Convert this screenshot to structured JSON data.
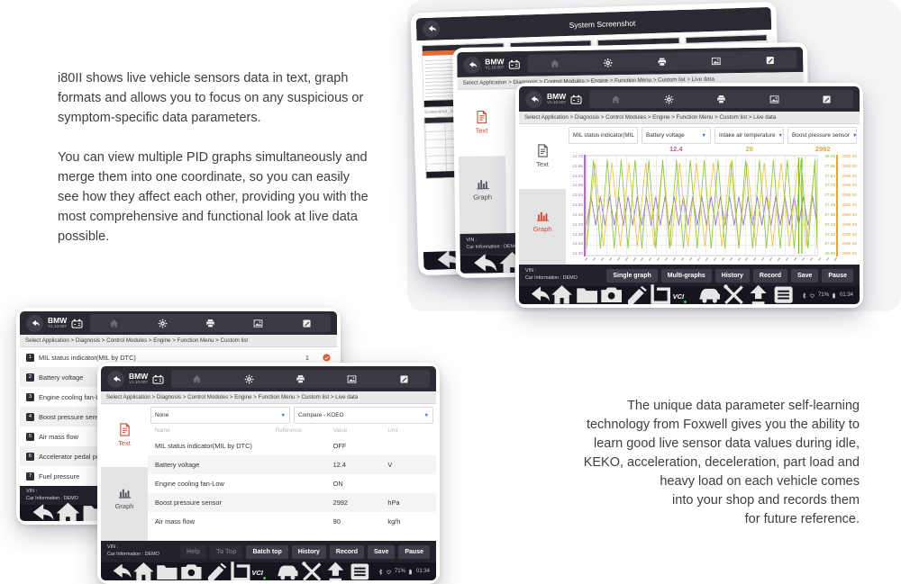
{
  "marketing": {
    "left_p1": "i80II shows live vehicle sensors data in text, graph formats and allows you to focus on any suspicious or symptom-specific data parameters.",
    "left_p2": "You can view multiple PID graphs simultaneously and merge them into one coordinate, so you can easily see how they affect each other, providing you with the most comprehensive and functional look at live data possible.",
    "right_lines": [
      "The unique data parameter self-learning",
      "technology from Foxwell gives you the ability to",
      "learn good live sensor data values during idle,",
      "KEKO, acceleration, deceleration, part load and",
      "heavy load on each vehicle comes",
      "into your shop and records them",
      "for future reference."
    ]
  },
  "device": {
    "brand": "BMW",
    "version": "V1.10.007"
  },
  "header_icons": [
    "home",
    "gear",
    "printer",
    "image",
    "note"
  ],
  "nav": {
    "icons": [
      "back",
      "home",
      "folder",
      "camera",
      "journal",
      "crop",
      "vci",
      "car",
      "tools",
      "up",
      "menu"
    ],
    "vci_label": "VCI",
    "battery_pct": "71%",
    "time": "01:34"
  },
  "breadcrumbs": {
    "live": "Select Application > Diagnosis > Control Modules > Engine > Function Menu > Custom list > Live data",
    "custom": "Select Application > Diagnosis > Control Modules > Engine > Function Menu > Custom list"
  },
  "sidebar": {
    "text": "Text",
    "graph": "Graph"
  },
  "vin": {
    "label": "VIN :",
    "car": "Car Information : DEMO"
  },
  "system_screen": {
    "title": "System Screenshot",
    "thumb_label": "Screenshot_202203..."
  },
  "graph_screen": {
    "pids": [
      "MIL status indicator(MIL",
      "Battery voltage",
      "Intake air temperature",
      "Boost pressure sensor"
    ],
    "values": [
      {
        "text": "",
        "color": "#ffffff"
      },
      {
        "text": "12.4",
        "color": "#bf5f9e"
      },
      {
        "text": "28",
        "color": "#d8b84e"
      },
      {
        "text": "2992",
        "color": "#e5a23c"
      }
    ],
    "y_left": [
      "12.70",
      "12.66",
      "12.62",
      "12.58",
      "12.54",
      "12.50",
      "12.46",
      "12.42",
      "12.38",
      "12.34",
      "12.30"
    ],
    "y_right_inner": [
      "28.08",
      "27.96",
      "27.84",
      "27.72",
      "27.60",
      "27.48",
      "27.36",
      "27.24",
      "27.12",
      "27.00",
      "26.88"
    ],
    "y_right_outer": [
      "3002.50",
      "3000.50",
      "2998.50",
      "2996.50",
      "2994.50",
      "2992.50",
      "2990.50",
      "2988.50",
      "2986.50",
      "2984.50",
      "2982.50"
    ],
    "series": [
      {
        "name": "Battery voltage",
        "color": "#9a6fc0",
        "half": 6,
        "lo": 46,
        "hi": 78
      },
      {
        "name": "Boost pressure sensor",
        "color": "#ecc34a",
        "half": 11,
        "lo": 8,
        "hi": 102
      },
      {
        "name": "Intake air temperature",
        "color": "#8cc63e",
        "half": 9,
        "lo": 5,
        "hi": 104
      }
    ],
    "buttons": [
      "Single graph",
      "Multi-graphs",
      "History",
      "Record",
      "Save",
      "Pause"
    ]
  },
  "table_screen": {
    "filters": [
      "None",
      "Compare - KOEO"
    ],
    "columns": [
      "Name",
      "Reference",
      "Value",
      "Unit"
    ],
    "rows": [
      {
        "name": "MIL status indicator(MIL by DTC)",
        "reference": "",
        "value": "OFF",
        "unit": ""
      },
      {
        "name": "Battery voltage",
        "reference": "",
        "value": "12.4",
        "unit": "V"
      },
      {
        "name": "Engine cooling fan-Low",
        "reference": "",
        "value": "ON",
        "unit": ""
      },
      {
        "name": "Boost pressure sensor",
        "reference": "",
        "value": "2992",
        "unit": "hPa"
      },
      {
        "name": "Air mass flow",
        "reference": "",
        "value": "90",
        "unit": "kg/h"
      }
    ],
    "buttons": [
      {
        "label": "Help",
        "disabled": true
      },
      {
        "label": "To Top",
        "disabled": true
      },
      {
        "label": "Batch top",
        "disabled": false
      },
      {
        "label": "History",
        "disabled": false
      },
      {
        "label": "Record",
        "disabled": false
      },
      {
        "label": "Save",
        "disabled": false
      },
      {
        "label": "Pause",
        "disabled": false
      }
    ]
  },
  "list_screen": {
    "rows": [
      {
        "num": "1",
        "label": "MIL status indicator(MIL by DTC)",
        "value": "1",
        "checked": true
      },
      {
        "num": "2",
        "label": "Battery voltage",
        "value": "",
        "checked": false
      },
      {
        "num": "3",
        "label": "Engine cooling fan-Low",
        "value": "",
        "checked": false
      },
      {
        "num": "4",
        "label": "Boost pressure sensor",
        "value": "",
        "checked": false
      },
      {
        "num": "5",
        "label": "Air mass flow",
        "value": "",
        "checked": false
      },
      {
        "num": "6",
        "label": "Accelerator pedal position",
        "value": "",
        "checked": false
      },
      {
        "num": "7",
        "label": "Fuel pressure",
        "value": "",
        "checked": false
      }
    ]
  }
}
